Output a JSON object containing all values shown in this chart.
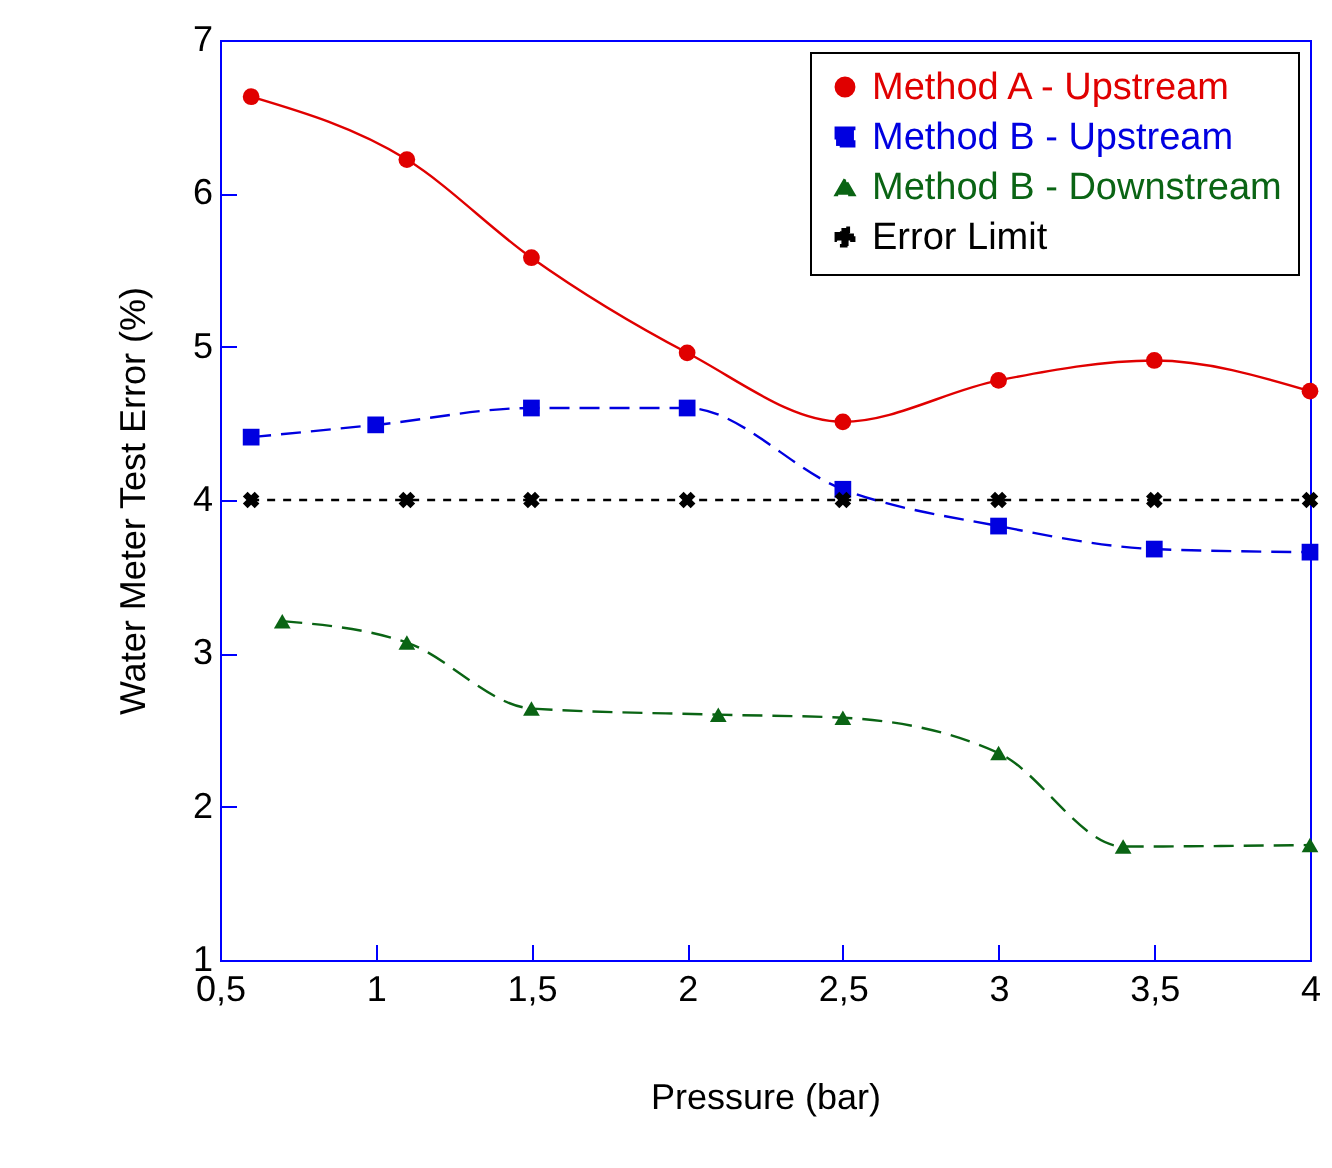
{
  "chart_data": {
    "type": "line",
    "xlabel": "Pressure (bar)",
    "ylabel": "Water Meter Test Error (%)",
    "xlim": [
      0.5,
      4
    ],
    "xticks": [
      {
        "value": 0.5,
        "label": "0,5"
      },
      1,
      {
        "value": 1.5,
        "label": "1,5"
      },
      2,
      {
        "value": 2.5,
        "label": "2,5"
      },
      3,
      {
        "value": 3.5,
        "label": "3,5"
      },
      4
    ],
    "ylim": [
      1,
      7
    ],
    "yticks": [
      1,
      2,
      3,
      4,
      5,
      6,
      7
    ],
    "grid": false,
    "legend": "top right",
    "series": [
      {
        "name": "Method A - Upstream",
        "color": "#e00000",
        "marker": "circle",
        "line_style": "solid",
        "x": [
          0.6,
          1.1,
          1.5,
          2,
          2.5,
          3,
          3.5,
          4
        ],
        "values": [
          6.63,
          6.22,
          5.58,
          4.96,
          4.51,
          4.78,
          4.91,
          4.71
        ]
      },
      {
        "name": "Method B - Upstream",
        "color": "#0000e0",
        "marker": "square",
        "line_style": "dashed",
        "x": [
          0.6,
          1,
          1.5,
          2,
          2.5,
          3,
          3.5,
          4
        ],
        "values": [
          4.41,
          4.49,
          4.6,
          4.6,
          4.07,
          3.83,
          3.68,
          3.66
        ]
      },
      {
        "name": "Method B - Downstream",
        "color": "#0a6414",
        "marker": "triangle",
        "line_style": "dashed",
        "x": [
          0.7,
          1.1,
          1.5,
          2.1,
          2.5,
          3,
          3.4,
          4
        ],
        "values": [
          3.21,
          3.07,
          2.64,
          2.6,
          2.58,
          2.35,
          1.74,
          1.75
        ]
      },
      {
        "name": "Error Limit",
        "color": "#000000",
        "marker": "cross",
        "line_style": "dotted",
        "x": [
          0.6,
          1.1,
          1.5,
          2,
          2.5,
          3,
          3.5,
          4
        ],
        "values": [
          4,
          4,
          4,
          4,
          4,
          4,
          4,
          4
        ]
      }
    ]
  }
}
